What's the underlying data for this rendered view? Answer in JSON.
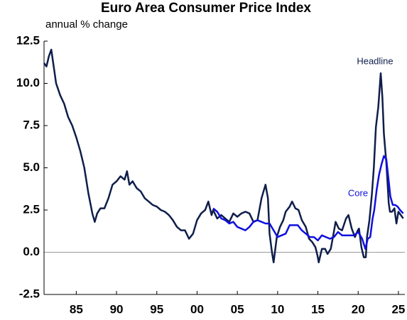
{
  "chart_data": {
    "type": "line",
    "title": "Euro Area Consumer Price Index",
    "subtitle": "annual % change",
    "xlim": [
      1981,
      2025.8
    ],
    "xticks": [
      {
        "value": 1985,
        "label": "85"
      },
      {
        "value": 1990,
        "label": "90"
      },
      {
        "value": 1995,
        "label": "95"
      },
      {
        "value": 2000,
        "label": "00"
      },
      {
        "value": 2005,
        "label": "05"
      },
      {
        "value": 2010,
        "label": "10"
      },
      {
        "value": 2015,
        "label": "15"
      },
      {
        "value": 2020,
        "label": "20"
      },
      {
        "value": 2025,
        "label": "25"
      }
    ],
    "ylim": [
      -2.5,
      12.5
    ],
    "yticks": [
      12.5,
      {
        "value": 10,
        "label": "10.0"
      },
      7.5,
      {
        "value": 5,
        "label": "5.0"
      },
      2.5,
      {
        "value": 0,
        "label": "0.0"
      },
      -2.5
    ],
    "series": [
      {
        "name": "Headline",
        "color": "#0f1e4a",
        "x": [
          1981.0,
          1981.3,
          1981.6,
          1981.9,
          1982.2,
          1982.5,
          1983.0,
          1983.5,
          1984.0,
          1984.5,
          1985.0,
          1985.5,
          1986.0,
          1986.5,
          1987.0,
          1987.3,
          1987.6,
          1988.0,
          1988.5,
          1989.0,
          1989.5,
          1990.0,
          1990.5,
          1991.0,
          1991.3,
          1991.6,
          1992.0,
          1992.5,
          1993.0,
          1993.5,
          1994.0,
          1994.5,
          1995.0,
          1995.5,
          1996.0,
          1996.5,
          1997.0,
          1997.5,
          1998.0,
          1998.5,
          1999.0,
          1999.5,
          2000.0,
          2000.5,
          2001.0,
          2001.4,
          2001.8,
          2002.0,
          2002.5,
          2003.0,
          2003.5,
          2004.0,
          2004.5,
          2005.0,
          2005.5,
          2006.0,
          2006.5,
          2007.0,
          2007.5,
          2008.0,
          2008.5,
          2008.8,
          2009.0,
          2009.3,
          2009.5,
          2009.9,
          2010.3,
          2010.7,
          2011.0,
          2011.5,
          2011.8,
          2012.2,
          2012.6,
          2013.0,
          2013.5,
          2013.9,
          2014.3,
          2014.7,
          2014.95,
          2015.1,
          2015.5,
          2015.9,
          2016.2,
          2016.6,
          2016.95,
          2017.2,
          2017.6,
          2018.0,
          2018.5,
          2018.8,
          2019.2,
          2019.6,
          2019.95,
          2020.1,
          2020.4,
          2020.7,
          2020.95,
          2021.1,
          2021.4,
          2021.7,
          2021.95,
          2022.2,
          2022.5,
          2022.8,
          2023.0,
          2023.2,
          2023.5,
          2023.8,
          2023.95,
          2024.2,
          2024.5,
          2024.75,
          2025.0,
          2025.3,
          2025.6
        ],
        "values": [
          11.2,
          11.0,
          11.6,
          12.0,
          11.0,
          10.0,
          9.3,
          8.8,
          8.0,
          7.5,
          6.8,
          6.0,
          5.0,
          3.5,
          2.3,
          1.8,
          2.3,
          2.6,
          2.6,
          3.2,
          4.0,
          4.2,
          4.5,
          4.3,
          4.8,
          4.0,
          4.2,
          3.8,
          3.6,
          3.2,
          3.0,
          2.8,
          2.7,
          2.5,
          2.4,
          2.2,
          1.9,
          1.5,
          1.3,
          1.3,
          0.8,
          1.1,
          1.9,
          2.3,
          2.5,
          3.0,
          2.2,
          2.5,
          2.0,
          2.2,
          2.0,
          1.8,
          2.3,
          2.1,
          2.3,
          2.4,
          2.3,
          1.8,
          1.9,
          3.2,
          4.0,
          3.2,
          1.1,
          0.0,
          -0.6,
          0.9,
          1.5,
          1.9,
          2.4,
          2.7,
          3.0,
          2.6,
          2.5,
          1.9,
          1.5,
          0.8,
          0.6,
          0.3,
          -0.2,
          -0.6,
          0.2,
          0.2,
          -0.1,
          0.2,
          1.1,
          1.8,
          1.4,
          1.3,
          2.0,
          2.2,
          1.4,
          0.9,
          1.3,
          1.4,
          0.3,
          -0.3,
          -0.3,
          0.9,
          1.9,
          3.4,
          5.0,
          7.4,
          8.6,
          10.6,
          9.2,
          7.0,
          5.3,
          2.9,
          2.4,
          2.4,
          2.6,
          1.7,
          2.4,
          2.2,
          2.0
        ]
      },
      {
        "name": "Core",
        "color": "#1010e0",
        "x": [
          2002.0,
          2002.5,
          2003.0,
          2003.5,
          2004.0,
          2004.5,
          2005.0,
          2005.5,
          2006.0,
          2006.5,
          2007.0,
          2007.5,
          2008.0,
          2008.5,
          2009.0,
          2009.5,
          2010.0,
          2010.5,
          2011.0,
          2011.5,
          2012.0,
          2012.5,
          2013.0,
          2013.5,
          2014.0,
          2014.5,
          2015.0,
          2015.5,
          2016.0,
          2016.5,
          2017.0,
          2017.5,
          2018.0,
          2018.5,
          2019.0,
          2019.5,
          2020.0,
          2020.5,
          2020.9,
          2021.2,
          2021.5,
          2021.8,
          2022.0,
          2022.3,
          2022.6,
          2022.9,
          2023.2,
          2023.5,
          2023.8,
          2024.0,
          2024.3,
          2024.6,
          2024.9,
          2025.2,
          2025.6
        ],
        "values": [
          2.6,
          2.4,
          2.0,
          1.9,
          1.7,
          1.8,
          1.5,
          1.4,
          1.3,
          1.5,
          1.8,
          1.9,
          1.8,
          1.7,
          1.7,
          1.3,
          0.9,
          1.0,
          1.1,
          1.6,
          1.6,
          1.6,
          1.3,
          1.1,
          0.9,
          0.9,
          0.7,
          1.0,
          0.9,
          0.8,
          0.9,
          1.2,
          1.0,
          1.0,
          1.0,
          1.0,
          1.2,
          0.8,
          0.2,
          0.8,
          0.9,
          2.0,
          2.5,
          3.7,
          4.6,
          5.2,
          5.7,
          5.5,
          4.2,
          3.3,
          2.8,
          2.8,
          2.7,
          2.5,
          2.3
        ]
      }
    ]
  }
}
